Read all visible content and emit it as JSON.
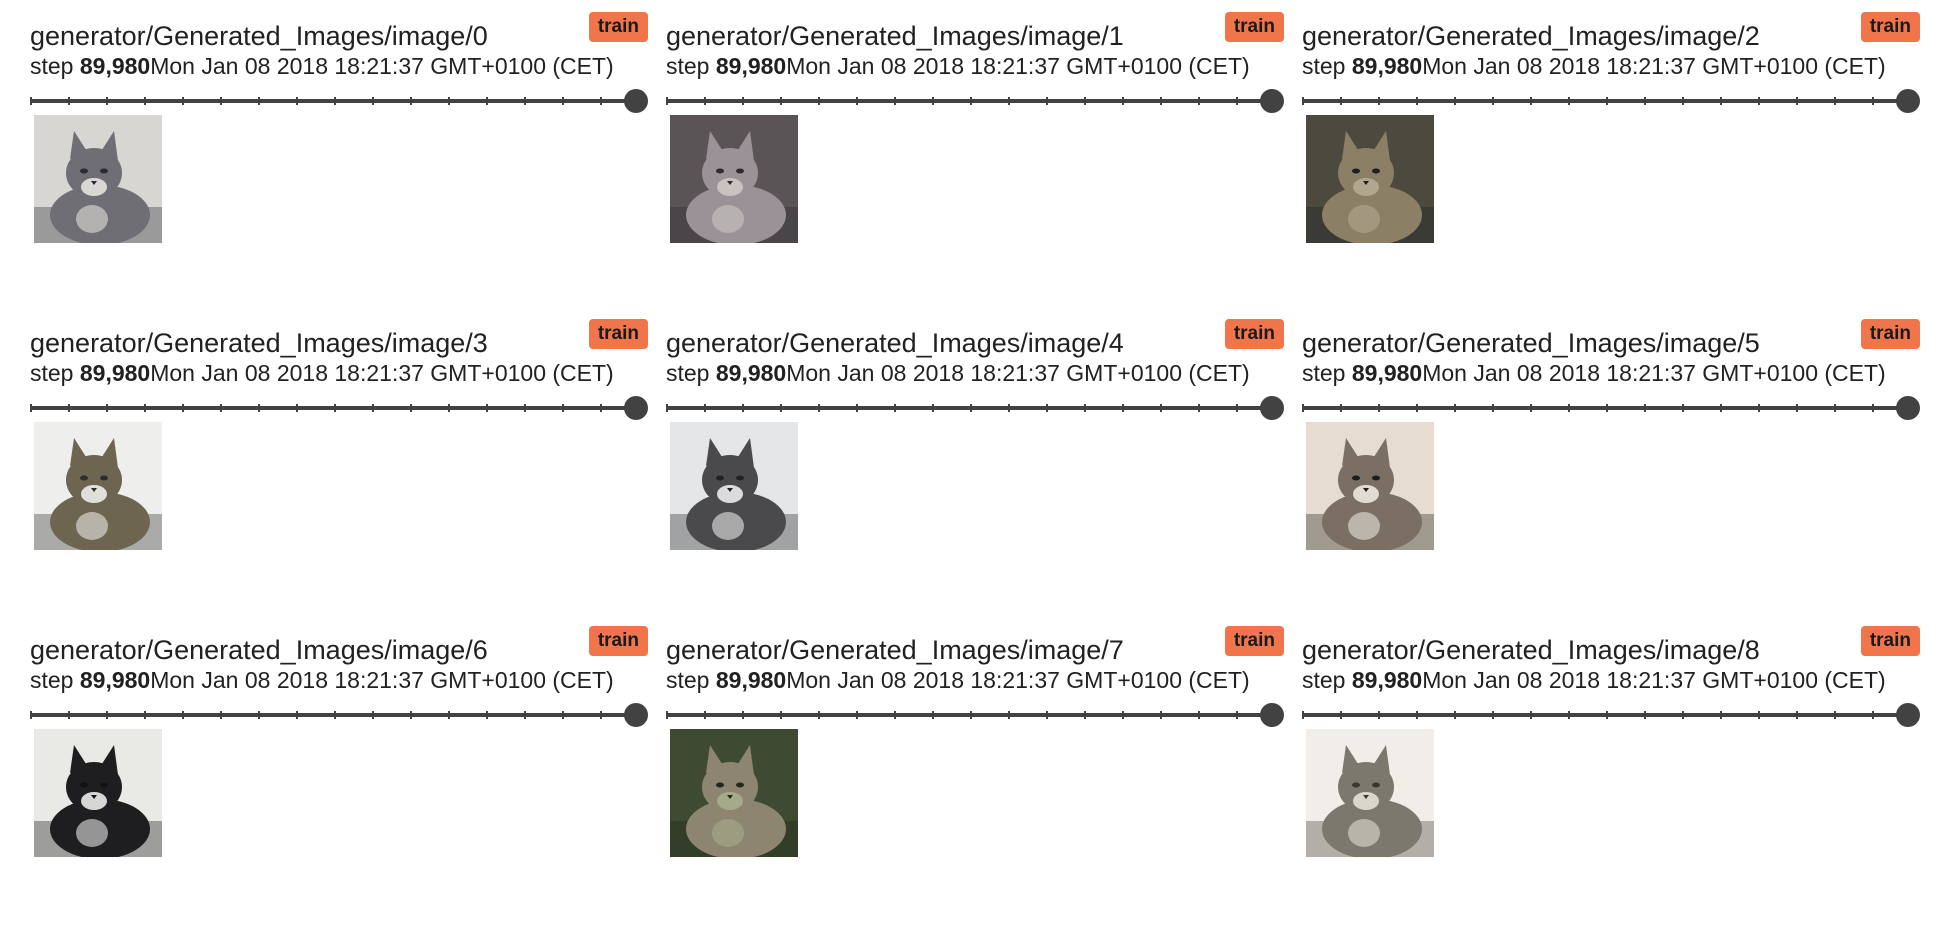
{
  "cards": [
    {
      "title": "generator/Generated_Images/image/0",
      "run": "train",
      "step_label": "step",
      "step": "89,980",
      "time": "Mon Jan 08 2018 18:21:37 GMT+0100 (CET)",
      "image": {
        "subject": "cat",
        "bg": "#d8d6d2",
        "fur": "#6f6e74",
        "accent": "#ece9e4",
        "shadow": "#2a2b33"
      }
    },
    {
      "title": "generator/Generated_Images/image/1",
      "run": "train",
      "step_label": "step",
      "step": "89,980",
      "time": "Mon Jan 08 2018 18:21:37 GMT+0100 (CET)",
      "image": {
        "subject": "cat",
        "bg": "#5a5457",
        "fur": "#9a9296",
        "accent": "#d0cbc8",
        "shadow": "#2f2a2d"
      }
    },
    {
      "title": "generator/Generated_Images/image/2",
      "run": "train",
      "step_label": "step",
      "step": "89,980",
      "time": "Mon Jan 08 2018 18:21:37 GMT+0100 (CET)",
      "image": {
        "subject": "cat",
        "bg": "#4c4a3e",
        "fur": "#8b7f66",
        "accent": "#b7ad95",
        "shadow": "#1e1f24"
      }
    },
    {
      "title": "generator/Generated_Images/image/3",
      "run": "train",
      "step_label": "step",
      "step": "89,980",
      "time": "Mon Jan 08 2018 18:21:37 GMT+0100 (CET)",
      "image": {
        "subject": "cat",
        "bg": "#eeeeec",
        "fur": "#6d6550",
        "accent": "#f4f4f2",
        "shadow": "#2c2c2c"
      }
    },
    {
      "title": "generator/Generated_Images/image/4",
      "run": "train",
      "step_label": "step",
      "step": "89,980",
      "time": "Mon Jan 08 2018 18:21:37 GMT+0100 (CET)",
      "image": {
        "subject": "cat",
        "bg": "#e4e6e8",
        "fur": "#4a4a4d",
        "accent": "#f5f5f5",
        "shadow": "#222226"
      }
    },
    {
      "title": "generator/Generated_Images/image/5",
      "run": "train",
      "step_label": "step",
      "step": "89,980",
      "time": "Mon Jan 08 2018 18:21:37 GMT+0100 (CET)",
      "image": {
        "subject": "cat",
        "bg": "#e6ddd0",
        "fur": "#7a6f62",
        "accent": "#f3efe8",
        "shadow": "#1d1d1d"
      }
    },
    {
      "title": "generator/Generated_Images/image/6",
      "run": "train",
      "step_label": "step",
      "step": "89,980",
      "time": "Mon Jan 08 2018 18:21:37 GMT+0100 (CET)",
      "image": {
        "subject": "cat",
        "bg": "#e9e9e6",
        "fur": "#1e1e20",
        "accent": "#f7f7f5",
        "shadow": "#111112"
      }
    },
    {
      "title": "generator/Generated_Images/image/7",
      "run": "train",
      "step_label": "step",
      "step": "89,980",
      "time": "Mon Jan 08 2018 18:21:37 GMT+0100 (CET)",
      "image": {
        "subject": "cat",
        "bg": "#3e4a32",
        "fur": "#8d8570",
        "accent": "#a9b08e",
        "shadow": "#20281c"
      }
    },
    {
      "title": "generator/Generated_Images/image/8",
      "run": "train",
      "step_label": "step",
      "step": "89,980",
      "time": "Mon Jan 08 2018 18:21:37 GMT+0100 (CET)",
      "image": {
        "subject": "cat",
        "bg": "#f1eee9",
        "fur": "#7d786d",
        "accent": "#ebe6dc",
        "shadow": "#3b3833"
      }
    }
  ]
}
